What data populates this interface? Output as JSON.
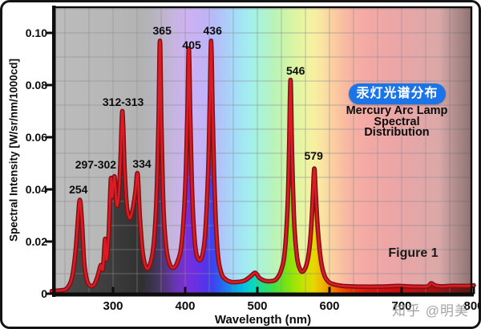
{
  "page": {
    "watermark": "知乎 @明美"
  },
  "figure": {
    "badge_cn": "汞灯光谱分布",
    "badge_color": "#1b74e8",
    "title_lines": [
      "Mercury Arc Lamp",
      "Spectral",
      "Distribution"
    ],
    "figure_label": "Figure 1"
  },
  "chart_data": {
    "type": "line",
    "title": "Mercury Arc Lamp Spectral Distribution",
    "xlabel": "Wavelength (nm)",
    "ylabel": "Spectral Intensity [W/sr/nm/1000cd]",
    "xlim": [
      215,
      800
    ],
    "ylim": [
      0,
      0.11
    ],
    "grid": true,
    "legend": "none",
    "x_ticks": [
      {
        "label": "300",
        "value": 300
      },
      {
        "label": "400",
        "value": 400
      },
      {
        "label": "500",
        "value": 500
      },
      {
        "label": "600",
        "value": 600
      },
      {
        "label": "700",
        "value": 700
      },
      {
        "label": "800",
        "value": 800
      }
    ],
    "y_ticks": [
      {
        "label": "0.10",
        "value": 0.1
      },
      {
        "label": "0.08",
        "value": 0.08
      },
      {
        "label": "0.06",
        "value": 0.06
      },
      {
        "label": "0.04",
        "value": 0.04
      },
      {
        "label": "0.02",
        "value": 0.02
      },
      {
        "label": "0",
        "value": 0
      }
    ],
    "peak_labels": [
      {
        "text": "254",
        "nm": 252,
        "i": 0.04
      },
      {
        "text": "297-302",
        "nm": 276,
        "i": 0.0495
      },
      {
        "text": "312-313",
        "nm": 314,
        "i": 0.0735
      },
      {
        "text": "334",
        "nm": 340,
        "i": 0.05
      },
      {
        "text": "365",
        "nm": 368,
        "i": 0.101
      },
      {
        "text": "405",
        "nm": 409,
        "i": 0.0955
      },
      {
        "text": "436",
        "nm": 438,
        "i": 0.101
      },
      {
        "text": "546",
        "nm": 553,
        "i": 0.0855
      },
      {
        "text": "579",
        "nm": 578,
        "i": 0.053
      }
    ],
    "mercury_emission_lines_nm": [
      254,
      297,
      302,
      313,
      334,
      365,
      405,
      436,
      546,
      579
    ],
    "curve_points": [
      [
        215,
        0.001
      ],
      [
        228,
        0.0013
      ],
      [
        236,
        0.002
      ],
      [
        243,
        0.006
      ],
      [
        248,
        0.016
      ],
      [
        251,
        0.027
      ],
      [
        254,
        0.036
      ],
      [
        257,
        0.027
      ],
      [
        260,
        0.012
      ],
      [
        264,
        0.005
      ],
      [
        269,
        0.003
      ],
      [
        274,
        0.0035
      ],
      [
        279,
        0.007
      ],
      [
        283,
        0.011
      ],
      [
        286,
        0.0095
      ],
      [
        289,
        0.021
      ],
      [
        291,
        0.013
      ],
      [
        294,
        0.023
      ],
      [
        297,
        0.044
      ],
      [
        299,
        0.037
      ],
      [
        302,
        0.045
      ],
      [
        305,
        0.034
      ],
      [
        308,
        0.038
      ],
      [
        310.5,
        0.052
      ],
      [
        313,
        0.07
      ],
      [
        316,
        0.048
      ],
      [
        319,
        0.034
      ],
      [
        323,
        0.029
      ],
      [
        327,
        0.032
      ],
      [
        331,
        0.039
      ],
      [
        334,
        0.046
      ],
      [
        337,
        0.03
      ],
      [
        341,
        0.016
      ],
      [
        346,
        0.01
      ],
      [
        351,
        0.011
      ],
      [
        356,
        0.018
      ],
      [
        360,
        0.035
      ],
      [
        363,
        0.065
      ],
      [
        365,
        0.097
      ],
      [
        367,
        0.065
      ],
      [
        370,
        0.032
      ],
      [
        374,
        0.017
      ],
      [
        379,
        0.011
      ],
      [
        384,
        0.01
      ],
      [
        389,
        0.012
      ],
      [
        395,
        0.019
      ],
      [
        400,
        0.04
      ],
      [
        403,
        0.068
      ],
      [
        405,
        0.094
      ],
      [
        407,
        0.068
      ],
      [
        410,
        0.036
      ],
      [
        414,
        0.018
      ],
      [
        419,
        0.013
      ],
      [
        424,
        0.015
      ],
      [
        428,
        0.024
      ],
      [
        432,
        0.048
      ],
      [
        434,
        0.072
      ],
      [
        436,
        0.097
      ],
      [
        438,
        0.07
      ],
      [
        441,
        0.038
      ],
      [
        445,
        0.016
      ],
      [
        450,
        0.008
      ],
      [
        456,
        0.0055
      ],
      [
        464,
        0.0045
      ],
      [
        473,
        0.0045
      ],
      [
        482,
        0.005
      ],
      [
        490,
        0.0065
      ],
      [
        497,
        0.008
      ],
      [
        503,
        0.006
      ],
      [
        510,
        0.005
      ],
      [
        518,
        0.0048
      ],
      [
        526,
        0.0055
      ],
      [
        533,
        0.009
      ],
      [
        538,
        0.016
      ],
      [
        542,
        0.034
      ],
      [
        544,
        0.055
      ],
      [
        546,
        0.082
      ],
      [
        548,
        0.055
      ],
      [
        551,
        0.028
      ],
      [
        555,
        0.014
      ],
      [
        559,
        0.0095
      ],
      [
        563,
        0.0085
      ],
      [
        568,
        0.011
      ],
      [
        572,
        0.017
      ],
      [
        575,
        0.027
      ],
      [
        577,
        0.038
      ],
      [
        579,
        0.048
      ],
      [
        581,
        0.038
      ],
      [
        584,
        0.024
      ],
      [
        588,
        0.013
      ],
      [
        593,
        0.007
      ],
      [
        599,
        0.0045
      ],
      [
        607,
        0.0035
      ],
      [
        618,
        0.003
      ],
      [
        632,
        0.0028
      ],
      [
        648,
        0.0027
      ],
      [
        664,
        0.0027
      ],
      [
        680,
        0.0028
      ],
      [
        695,
        0.003
      ],
      [
        710,
        0.0028
      ],
      [
        724,
        0.0027
      ],
      [
        736,
        0.0028
      ],
      [
        741,
        0.004
      ],
      [
        746,
        0.0032
      ],
      [
        755,
        0.0028
      ],
      [
        768,
        0.003
      ],
      [
        780,
        0.003
      ],
      [
        792,
        0.003
      ],
      [
        800,
        0.0032
      ]
    ],
    "colors": {
      "line_core": "#de1b24",
      "line_edge": "#7c1216",
      "axis": "#0d0d0d",
      "spectrum_stops": [
        [
          0.0,
          "#4b4b4b"
        ],
        [
          0.1437,
          "#3c3c3c"
        ],
        [
          0.2126,
          "#303030"
        ],
        [
          0.2419,
          "#3d3550"
        ],
        [
          0.2678,
          "#55357e"
        ],
        [
          0.2902,
          "#6536ad"
        ],
        [
          0.3161,
          "#7b2fd6"
        ],
        [
          0.3385,
          "#6d2fe2"
        ],
        [
          0.3644,
          "#5433ea"
        ],
        [
          0.3851,
          "#3947ee"
        ],
        [
          0.4109,
          "#2272ee"
        ],
        [
          0.4368,
          "#0ba4e8"
        ],
        [
          0.4626,
          "#06c8da"
        ],
        [
          0.4833,
          "#0cdcb4"
        ],
        [
          0.5057,
          "#27dd7a"
        ],
        [
          0.5281,
          "#43df43"
        ],
        [
          0.5523,
          "#6fe21c"
        ],
        [
          0.5764,
          "#9ce406"
        ],
        [
          0.6006,
          "#c8e200"
        ],
        [
          0.623,
          "#e6d800"
        ],
        [
          0.6437,
          "#f0b400"
        ],
        [
          0.6661,
          "#f28300"
        ],
        [
          0.6885,
          "#ef5500"
        ],
        [
          0.7161,
          "#e72c06"
        ],
        [
          0.7557,
          "#dc160c"
        ],
        [
          0.8161,
          "#c90f0f"
        ],
        [
          0.8678,
          "#b61111"
        ],
        [
          0.9282,
          "#981414"
        ],
        [
          1.0,
          "#6f1717"
        ]
      ]
    }
  }
}
